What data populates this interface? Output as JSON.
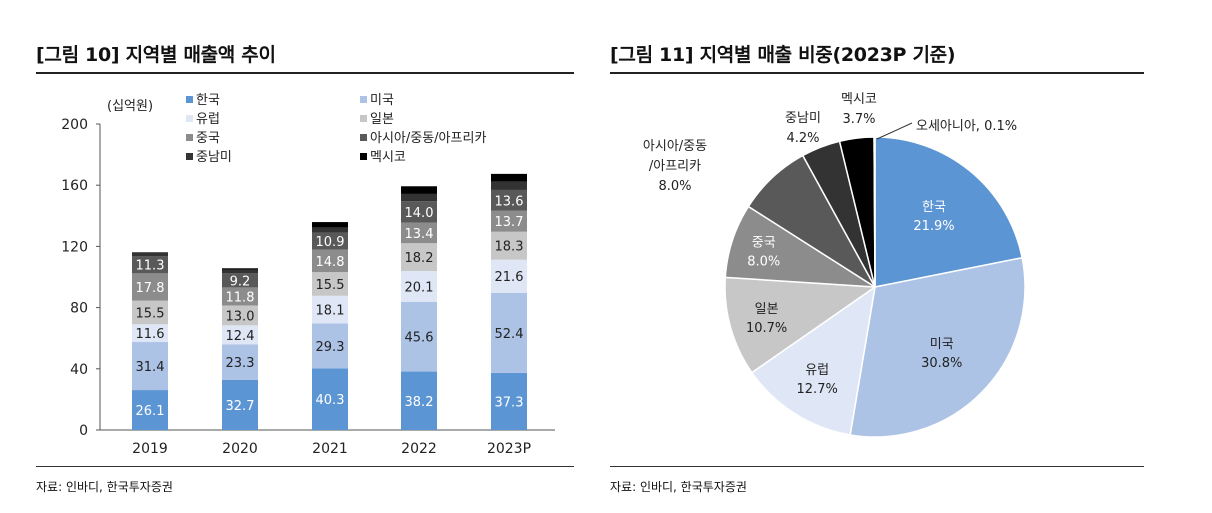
{
  "left": {
    "title": "[그림 10] 지역별 매출액 추이",
    "source": "자료: 인바디, 한국투자증권"
  },
  "right": {
    "title": "[그림 11] 지역별 매출 비중(2023P 기준)",
    "source": "자료: 인바디, 한국투자증권"
  },
  "colors": {
    "한국": "#5b95d3",
    "미국": "#adc3e6",
    "유럽": "#dfe7f6",
    "일본": "#c7c7c7",
    "중국": "#8c8c8c",
    "아시아/중동/아프리카": "#595959",
    "중남미": "#333333",
    "멕시코": "#000000",
    "오세아니아": "#7f7f7f"
  },
  "chart_data": [
    {
      "type": "bar",
      "stacked": true,
      "title": "[그림 10] 지역별 매출액 추이",
      "unit_label": "(십억원)",
      "categories": [
        "2019",
        "2020",
        "2021",
        "2022",
        "2023P"
      ],
      "ylim": [
        0,
        200
      ],
      "yticks": [
        0,
        40,
        80,
        120,
        160,
        200
      ],
      "legend_order": [
        "한국",
        "미국",
        "유럽",
        "일본",
        "중국",
        "아시아/중동/아프리카",
        "중남미",
        "멕시코"
      ],
      "series": [
        {
          "name": "한국",
          "values": [
            26.1,
            32.7,
            40.3,
            38.2,
            37.3
          ],
          "labels": [
            "26.1",
            "32.7",
            "40.3",
            "38.2",
            "37.3"
          ]
        },
        {
          "name": "미국",
          "values": [
            31.4,
            23.3,
            29.3,
            45.6,
            52.4
          ],
          "labels": [
            "31.4",
            "23.3",
            "29.3",
            "45.6",
            "52.4"
          ]
        },
        {
          "name": "유럽",
          "values": [
            11.6,
            12.4,
            18.1,
            20.1,
            21.6
          ],
          "labels": [
            "11.6",
            "12.4",
            "18.1",
            "20.1",
            "21.6"
          ]
        },
        {
          "name": "일본",
          "values": [
            15.5,
            13.0,
            15.5,
            18.2,
            18.3
          ],
          "labels": [
            "15.5",
            "13.0",
            "15.5",
            "18.2",
            "18.3"
          ]
        },
        {
          "name": "중국",
          "values": [
            17.8,
            11.8,
            14.8,
            13.4,
            13.7
          ],
          "labels": [
            "17.8",
            "11.8",
            "14.8",
            "13.4",
            "13.7"
          ]
        },
        {
          "name": "아시아/중동/아프리카",
          "values": [
            11.3,
            9.2,
            10.9,
            14.0,
            13.6
          ],
          "labels": [
            "11.3",
            "9.2",
            "10.9",
            "14.0",
            "13.6"
          ]
        },
        {
          "name": "중남미",
          "values": [
            2.5,
            2.3,
            3.5,
            4.8,
            5.4
          ],
          "labels": [
            "",
            "",
            "",
            "",
            ""
          ]
        },
        {
          "name": "멕시코",
          "values": [
            0,
            1.0,
            3.5,
            5.0,
            5.1
          ],
          "labels": [
            "",
            "",
            "",
            "",
            ""
          ]
        }
      ]
    },
    {
      "type": "pie",
      "title": "[그림 11] 지역별 매출 비중(2023P 기준)",
      "slices": [
        {
          "name": "한국",
          "value": 21.9,
          "label": "21.9%"
        },
        {
          "name": "미국",
          "value": 30.8,
          "label": "30.8%"
        },
        {
          "name": "유럽",
          "value": 12.7,
          "label": "12.7%"
        },
        {
          "name": "일본",
          "value": 10.7,
          "label": "10.7%"
        },
        {
          "name": "중국",
          "value": 8.0,
          "label": "8.0%"
        },
        {
          "name": "아시아/중동/아프리카",
          "display": [
            "아시아/중동",
            "/아프리카"
          ],
          "value": 8.0,
          "label": "8.0%"
        },
        {
          "name": "중남미",
          "value": 4.2,
          "label": "4.2%"
        },
        {
          "name": "멕시코",
          "value": 3.7,
          "label": "3.7%"
        },
        {
          "name": "오세아니아",
          "value": 0.1,
          "label": "0.1%",
          "inline": "오세아니아, 0.1%"
        }
      ]
    }
  ]
}
